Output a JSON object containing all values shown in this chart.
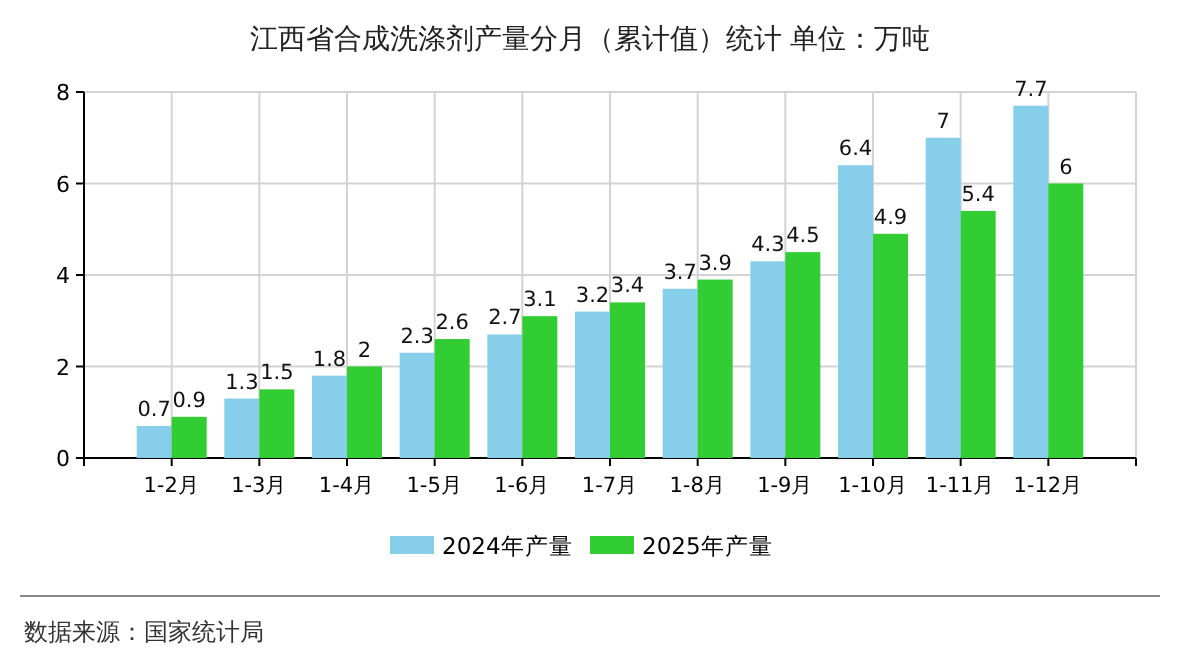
{
  "chart_data": {
    "type": "bar",
    "title": "江西省合成洗涤剂产量分月（累计值）统计  单位：万吨",
    "categories": [
      "1-2月",
      "1-3月",
      "1-4月",
      "1-5月",
      "1-6月",
      "1-7月",
      "1-8月",
      "1-9月",
      "1-10月",
      "1-11月",
      "1-12月"
    ],
    "series": [
      {
        "name": "2024年产量",
        "color": "#87ceeb",
        "values": [
          0.7,
          1.3,
          1.8,
          2.3,
          2.7,
          3.2,
          3.7,
          4.3,
          6.4,
          7,
          7.7
        ]
      },
      {
        "name": "2025年产量",
        "color": "#32cd32",
        "values": [
          0.9,
          1.5,
          2,
          2.6,
          3.1,
          3.4,
          3.9,
          4.5,
          4.9,
          5.4,
          6
        ]
      }
    ],
    "ylim": [
      0,
      8
    ],
    "yticks": [
      0,
      2,
      4,
      6,
      8
    ],
    "grid": true,
    "legend": "bottom",
    "data_labels": true,
    "annotations": [
      "数据来源：国家统计局"
    ]
  }
}
